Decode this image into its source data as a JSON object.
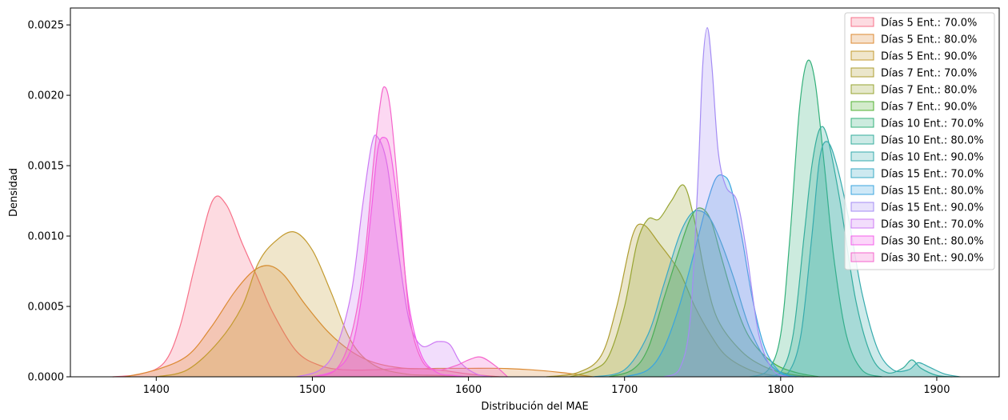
{
  "chart_data": {
    "type": "area",
    "title": "",
    "xlabel": "Distribución del MAE",
    "ylabel": "Densidad",
    "xlim": [
      1345,
      1940
    ],
    "ylim": [
      0,
      0.00262
    ],
    "xticks": [
      1400,
      1500,
      1600,
      1700,
      1800,
      1900
    ],
    "yticks": [
      0.0,
      0.0005,
      0.001,
      0.0015,
      0.002,
      0.0025
    ],
    "ytick_labels": [
      "0.0000",
      "0.0005",
      "0.0010",
      "0.0015",
      "0.0020",
      "0.0025"
    ],
    "grid": false,
    "legend_position": "top-right",
    "series": [
      {
        "name": "Días 5 Ent.: 70.0%",
        "color": "#f77189",
        "x": [
          1372,
          1390,
          1405,
          1415,
          1425,
          1436,
          1445,
          1455,
          1465,
          1475,
          1490,
          1505,
          1520,
          1540,
          1560,
          1580,
          1600,
          1620
        ],
        "y": [
          0,
          2e-05,
          0.0001,
          0.00035,
          0.0008,
          0.00125,
          0.00122,
          0.00095,
          0.0007,
          0.00045,
          0.00018,
          8e-05,
          5e-05,
          5e-05,
          6e-05,
          5e-05,
          2e-05,
          0
        ]
      },
      {
        "name": "Días 5 Ent.: 80.0%",
        "color": "#dc8932",
        "x": [
          1380,
          1400,
          1420,
          1435,
          1450,
          1462,
          1472,
          1482,
          1495,
          1510,
          1525,
          1540,
          1560,
          1580,
          1600,
          1620,
          1640,
          1660,
          1680
        ],
        "y": [
          0,
          5e-05,
          0.00015,
          0.00035,
          0.0006,
          0.00075,
          0.00079,
          0.00072,
          0.00052,
          0.00032,
          0.00018,
          0.0001,
          6e-05,
          6e-05,
          6e-05,
          6e-05,
          5e-05,
          3e-05,
          0
        ]
      },
      {
        "name": "Días 5 Ent.: 90.0%",
        "color": "#c39a2f",
        "x": [
          1400,
          1420,
          1440,
          1455,
          1465,
          1475,
          1488,
          1500,
          1512,
          1525,
          1540,
          1560,
          1580,
          1600
        ],
        "y": [
          0,
          5e-05,
          0.00025,
          0.0005,
          0.0008,
          0.00095,
          0.00103,
          0.0009,
          0.0006,
          0.00025,
          8e-05,
          2e-05,
          1e-05,
          0
        ]
      },
      {
        "name": "Días 7 Ent.: 70.0%",
        "color": "#ae9d31",
        "x": [
          1650,
          1670,
          1685,
          1695,
          1705,
          1712,
          1722,
          1735,
          1745,
          1755,
          1765,
          1780,
          1795,
          1810
        ],
        "y": [
          0,
          3e-05,
          0.00015,
          0.0005,
          0.001,
          0.00108,
          0.00095,
          0.00075,
          0.0005,
          0.0003,
          0.00015,
          5e-05,
          1e-05,
          0
        ]
      },
      {
        "name": "Días 7 Ent.: 80.0%",
        "color": "#97a431",
        "x": [
          1665,
          1680,
          1690,
          1700,
          1708,
          1715,
          1722,
          1730,
          1738,
          1745,
          1752,
          1760,
          1775,
          1790,
          1805,
          1820
        ],
        "y": [
          0,
          5e-05,
          0.00015,
          0.0005,
          0.00095,
          0.00112,
          0.00112,
          0.00125,
          0.00136,
          0.0011,
          0.0007,
          0.0004,
          0.00018,
          7e-05,
          2e-05,
          0
        ]
      },
      {
        "name": "Días 7 Ent.: 90.0%",
        "color": "#50b131",
        "x": [
          1690,
          1705,
          1715,
          1725,
          1735,
          1742,
          1748,
          1755,
          1762,
          1770,
          1780,
          1795,
          1810,
          1825
        ],
        "y": [
          0,
          5e-05,
          0.0002,
          0.00055,
          0.0009,
          0.00112,
          0.0012,
          0.00112,
          0.00085,
          0.00055,
          0.00028,
          0.0001,
          3e-05,
          0
        ]
      },
      {
        "name": "Días 10 Ent.: 70.0%",
        "color": "#33b07a",
        "x": [
          1780,
          1792,
          1800,
          1806,
          1812,
          1817,
          1822,
          1828,
          1834,
          1842,
          1852,
          1865
        ],
        "y": [
          0,
          5e-05,
          0.0003,
          0.001,
          0.0019,
          0.00224,
          0.0021,
          0.0015,
          0.00085,
          0.0003,
          5e-05,
          0
        ]
      },
      {
        "name": "Días 10 Ent.: 80.0%",
        "color": "#35ad9c",
        "x": [
          1790,
          1800,
          1808,
          1815,
          1820,
          1825,
          1830,
          1838,
          1848,
          1858,
          1868,
          1878,
          1884,
          1890,
          1900,
          1910
        ],
        "y": [
          0,
          3e-05,
          0.0003,
          0.001,
          0.0015,
          0.00176,
          0.0017,
          0.00125,
          0.00055,
          0.00015,
          3e-05,
          6e-05,
          0.00012,
          6e-05,
          1e-05,
          0
        ]
      },
      {
        "name": "Días 10 Ent.: 90.0%",
        "color": "#36abad",
        "x": [
          1795,
          1805,
          1813,
          1820,
          1825,
          1830,
          1836,
          1844,
          1852,
          1862,
          1872,
          1882,
          1888,
          1895,
          1905,
          1915
        ],
        "y": [
          0,
          3e-05,
          0.0003,
          0.001,
          0.00155,
          0.00167,
          0.0015,
          0.0011,
          0.0006,
          0.0002,
          5e-05,
          5e-05,
          0.0001,
          7e-05,
          2e-05,
          0
        ]
      },
      {
        "name": "Días 15 Ent.: 70.0%",
        "color": "#38a9c5",
        "x": [
          1680,
          1700,
          1715,
          1725,
          1735,
          1742,
          1748,
          1755,
          1762,
          1770,
          1780,
          1792,
          1805,
          1815
        ],
        "y": [
          0,
          5e-05,
          0.0003,
          0.00065,
          0.001,
          0.00115,
          0.00118,
          0.00112,
          0.00095,
          0.0007,
          0.00035,
          0.0001,
          1e-05,
          0
        ]
      },
      {
        "name": "Días 15 Ent.: 80.0%",
        "color": "#3aa5df",
        "x": [
          1700,
          1715,
          1725,
          1735,
          1745,
          1752,
          1758,
          1763,
          1768,
          1775,
          1782,
          1790,
          1800,
          1810
        ],
        "y": [
          0,
          5e-05,
          0.0002,
          0.0005,
          0.0009,
          0.0012,
          0.0014,
          0.00143,
          0.00135,
          0.001,
          0.00055,
          0.0002,
          3e-05,
          0
        ]
      },
      {
        "name": "Días 15 Ent.: 90.0%",
        "color": "#a48cf4",
        "x": [
          1725,
          1735,
          1742,
          1747,
          1750,
          1753,
          1756,
          1760,
          1765,
          1772,
          1778,
          1786,
          1795,
          1805
        ],
        "y": [
          0,
          5e-05,
          0.0004,
          0.0014,
          0.0022,
          0.00248,
          0.0022,
          0.0016,
          0.00135,
          0.00125,
          0.0009,
          0.0003,
          5e-05,
          0
        ]
      },
      {
        "name": "Días 30 Ent.: 70.0%",
        "color": "#cc79f4",
        "x": [
          1490,
          1505,
          1515,
          1525,
          1532,
          1538,
          1542,
          1548,
          1555,
          1562,
          1570,
          1580,
          1588,
          1595,
          1605,
          1615
        ],
        "y": [
          0,
          5e-05,
          0.0002,
          0.0006,
          0.0012,
          0.00165,
          0.0017,
          0.0015,
          0.0009,
          0.0004,
          0.00022,
          0.00025,
          0.00023,
          0.0001,
          2e-05,
          0
        ]
      },
      {
        "name": "Días 30 Ent.: 80.0%",
        "color": "#f45deb",
        "x": [
          1500,
          1515,
          1525,
          1532,
          1538,
          1542,
          1546,
          1550,
          1556,
          1562,
          1570,
          1580,
          1590,
          1600
        ],
        "y": [
          0,
          5e-05,
          0.0002,
          0.0006,
          0.0012,
          0.00162,
          0.0017,
          0.0016,
          0.0011,
          0.0005,
          0.00015,
          3e-05,
          1e-05,
          0
        ]
      },
      {
        "name": "Días 30 Ent.: 90.0%",
        "color": "#f565cc",
        "x": [
          1500,
          1515,
          1525,
          1533,
          1539,
          1543,
          1546,
          1550,
          1556,
          1562,
          1570,
          1580,
          1592,
          1600,
          1608,
          1617,
          1625
        ],
        "y": [
          0,
          5e-05,
          0.0003,
          0.0008,
          0.0015,
          0.0019,
          0.00206,
          0.0019,
          0.0012,
          0.00045,
          0.00012,
          5e-05,
          8e-05,
          0.00012,
          0.00014,
          8e-05,
          0
        ]
      }
    ]
  }
}
